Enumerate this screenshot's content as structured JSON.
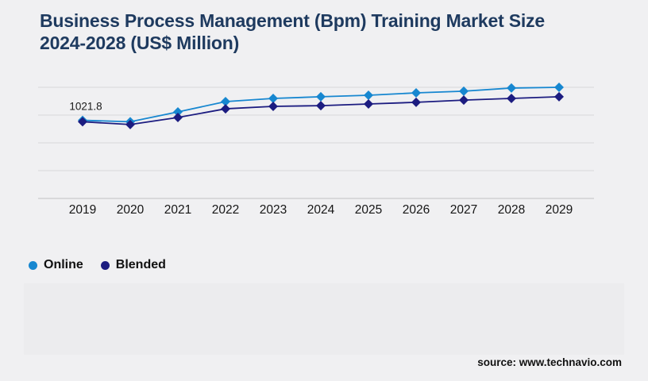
{
  "page": {
    "background_color": "#f0f0f2"
  },
  "title": {
    "line1": "Business Process Management (Bpm) Training Market Size",
    "line2": "2024-2028 (US$ Million)",
    "color": "#1e3a5f"
  },
  "chart_data": {
    "type": "line",
    "title": "Business Process Management (Bpm) Training Market Size 2024-2028 (US$ Million)",
    "x": [
      "2019",
      "2020",
      "2021",
      "2022",
      "2023",
      "2024",
      "2025",
      "2026",
      "2027",
      "2028",
      "2029"
    ],
    "series": [
      {
        "name": "Online",
        "color": "#1787d0",
        "values": [
          1021.8,
          1014.0,
          1067.0,
          1123.0,
          1140.0,
          1149.0,
          1157.0,
          1170.0,
          1179.0,
          1196.0,
          1200.0
        ]
      },
      {
        "name": "Blended",
        "color": "#1c1c80",
        "values": [
          1014.0,
          999.0,
          1037.0,
          1084.0,
          1097.0,
          1101.0,
          1110.0,
          1119.0,
          1131.0,
          1140.0,
          1149.0
        ]
      }
    ],
    "annotation": {
      "text": "1021.8",
      "series_index": 0,
      "point_index": 0
    },
    "ylim": [
      600,
      1200
    ],
    "gridline_step": 150,
    "grid": true,
    "y_axis_labels_visible": false,
    "marker": "diamond",
    "legend_position": "bottom-left",
    "grid_color": "#d8d8da",
    "axis_color": "#bfbfc1",
    "tick_label_color": "#161616"
  },
  "legend": {
    "items": [
      {
        "label": "Online",
        "color": "#1787d0"
      },
      {
        "label": "Blended",
        "color": "#1c1c80"
      }
    ]
  },
  "source": {
    "text": "source: www.technavio.com"
  }
}
